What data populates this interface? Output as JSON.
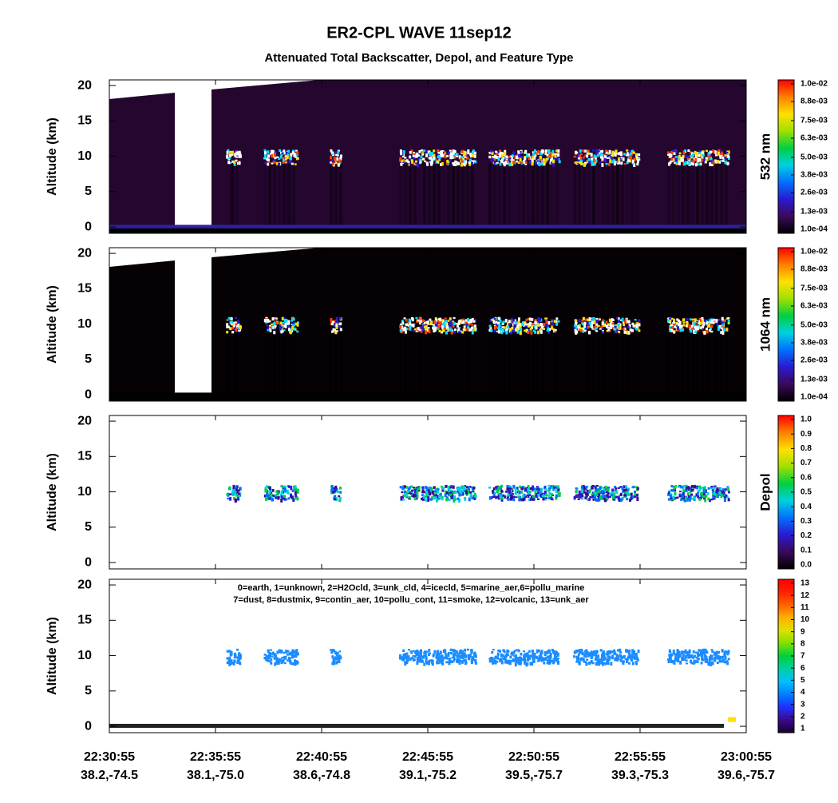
{
  "title": "ER2-CPL WAVE 11sep12",
  "subtitle": "Attenuated Total Backscatter, Depol, and Feature Type",
  "x_axis": {
    "categories": [
      "22:30:55",
      "22:35:55",
      "22:40:55",
      "22:45:55",
      "22:50:55",
      "22:55:55",
      "23:00:55"
    ],
    "locations": [
      "38.2,-74.5",
      "38.1,-75.0",
      "38.6,-74.8",
      "39.1,-75.2",
      "39.5,-75.7",
      "39.3,-75.3",
      "39.6,-75.7"
    ]
  },
  "chart_data": [
    {
      "type": "heatmap",
      "ylabel": "Altitude (km)",
      "ylim": [
        -0.9,
        20.8
      ],
      "yticks": [
        0,
        5,
        10,
        15,
        20
      ],
      "background": "#24062f",
      "colorbar": {
        "label": "532 nm",
        "lim": [
          0.0001,
          0.01
        ],
        "ticks": [
          {
            "value": 0.0001,
            "label": "1.0e-04"
          },
          {
            "value": 0.0013,
            "label": "1.3e-03"
          },
          {
            "value": 0.0026,
            "label": "2.6e-03"
          },
          {
            "value": 0.0038,
            "label": "3.8e-03"
          },
          {
            "value": 0.005,
            "label": "5.0e-03"
          },
          {
            "value": 0.0063,
            "label": "6.3e-03"
          },
          {
            "value": 0.0075,
            "label": "7.5e-03"
          },
          {
            "value": 0.0088,
            "label": "8.8e-03"
          },
          {
            "value": 0.01,
            "label": "1.0e-02"
          }
        ],
        "colors": [
          "#000000",
          "#3a0a5c",
          "#2a1ad0",
          "#0070ff",
          "#00d0e0",
          "#00d040",
          "#a0e000",
          "#ffe000",
          "#ff8000",
          "#ff0000"
        ]
      }
    },
    {
      "type": "heatmap",
      "ylabel": "Altitude (km)",
      "ylim": [
        -0.9,
        20.8
      ],
      "yticks": [
        0,
        5,
        10,
        15,
        20
      ],
      "background": "#050105",
      "colorbar": {
        "label": "1064 nm",
        "lim": [
          0.0001,
          0.01
        ],
        "ticks": [
          {
            "value": 0.0001,
            "label": "1.0e-04"
          },
          {
            "value": 0.0013,
            "label": "1.3e-03"
          },
          {
            "value": 0.0026,
            "label": "2.6e-03"
          },
          {
            "value": 0.0038,
            "label": "3.8e-03"
          },
          {
            "value": 0.005,
            "label": "5.0e-03"
          },
          {
            "value": 0.0063,
            "label": "6.3e-03"
          },
          {
            "value": 0.0075,
            "label": "7.5e-03"
          },
          {
            "value": 0.0088,
            "label": "8.8e-03"
          },
          {
            "value": 0.01,
            "label": "1.0e-02"
          }
        ],
        "colors": [
          "#000000",
          "#3a0a5c",
          "#2a1ad0",
          "#0070ff",
          "#00d0e0",
          "#00d040",
          "#a0e000",
          "#ffe000",
          "#ff8000",
          "#ff0000"
        ]
      }
    },
    {
      "type": "heatmap",
      "ylabel": "Altitude (km)",
      "ylim": [
        -0.9,
        20.8
      ],
      "yticks": [
        0,
        5,
        10,
        15,
        20
      ],
      "background": "#ffffff",
      "colorbar": {
        "label": "Depol",
        "lim": [
          0,
          1
        ],
        "ticks": [
          {
            "value": 0,
            "label": "0.0"
          },
          0.1,
          0.2,
          0.3,
          0.4,
          0.5,
          0.6,
          0.7,
          0.8,
          0.9,
          {
            "value": 1,
            "label": "1.0"
          }
        ],
        "colors": [
          "#000000",
          "#3a0a5c",
          "#2a1ad0",
          "#0070ff",
          "#00d0e0",
          "#00d040",
          "#a0e000",
          "#ffe000",
          "#ff8000",
          "#ff0000"
        ]
      }
    },
    {
      "type": "heatmap",
      "ylabel": "Altitude (km)",
      "ylim": [
        -0.9,
        20.8
      ],
      "yticks": [
        0,
        5,
        10,
        15,
        20
      ],
      "background": "#ffffff",
      "annotation": [
        "0=earth, 1=unknown, 2=H2Ocld, 3=unk_cld, 4=icecld, 5=marine_aer,6=pollu_marine",
        "7=dust, 8=dustmix, 9=contin_aer, 10=pollu_cont, 11=smoke, 12=volcanic, 13=unk_aer"
      ],
      "colorbar": {
        "label": null,
        "lim": [
          1,
          13
        ],
        "ticks": [
          1,
          2,
          3,
          4,
          5,
          6,
          7,
          8,
          9,
          10,
          11,
          12,
          13
        ],
        "colors": [
          "#1a0030",
          "#3a0a8c",
          "#2030ff",
          "#0080ff",
          "#00c0ff",
          "#00d0a0",
          "#00d040",
          "#80e000",
          "#e0e000",
          "#ffb000",
          "#ff6000",
          "#ff2000",
          "#ff0000"
        ]
      }
    }
  ]
}
